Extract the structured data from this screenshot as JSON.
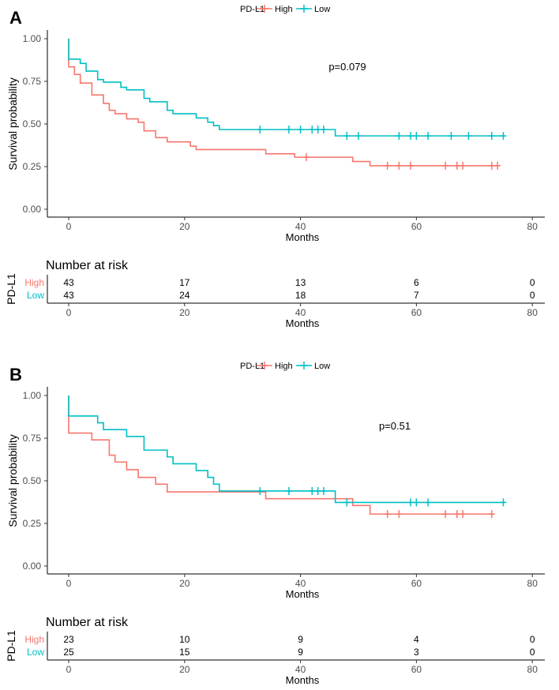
{
  "chart_data": [
    {
      "type": "line",
      "subtype": "kaplan-meier",
      "panel_label": "A",
      "legend": {
        "title": "PD-L1",
        "entries": [
          "High",
          "Low"
        ],
        "placement": "top"
      },
      "colors": {
        "High": "#F8766D",
        "Low": "#00BFC4"
      },
      "ylabel": "Survival probability",
      "xlabel": "Months",
      "xlim": [
        0,
        80
      ],
      "ylim": [
        0,
        1
      ],
      "xticks": [
        "0",
        "20",
        "40",
        "60",
        "80"
      ],
      "yticks": [
        "0.00",
        "0.25",
        "0.50",
        "0.75",
        "1.00"
      ],
      "pvalue": "p=0.079",
      "series": [
        {
          "name": "High",
          "steps": [
            [
              0,
              1.0
            ],
            [
              0,
              0.835
            ],
            [
              1,
              0.79
            ],
            [
              2,
              0.74
            ],
            [
              4,
              0.67
            ],
            [
              6,
              0.62
            ],
            [
              7,
              0.58
            ],
            [
              8,
              0.56
            ],
            [
              10,
              0.53
            ],
            [
              12,
              0.51
            ],
            [
              13,
              0.46
            ],
            [
              15,
              0.42
            ],
            [
              17,
              0.395
            ],
            [
              21,
              0.37
            ],
            [
              22,
              0.35
            ],
            [
              34,
              0.325
            ],
            [
              39,
              0.305
            ],
            [
              49,
              0.28
            ],
            [
              52,
              0.255
            ],
            [
              74,
              0.255
            ]
          ],
          "censored": [
            41,
            55,
            57,
            59,
            65,
            67,
            68,
            73,
            74
          ]
        },
        {
          "name": "Low",
          "steps": [
            [
              0,
              1.0
            ],
            [
              0,
              0.88
            ],
            [
              2,
              0.855
            ],
            [
              3,
              0.81
            ],
            [
              5,
              0.76
            ],
            [
              6,
              0.745
            ],
            [
              9,
              0.715
            ],
            [
              10,
              0.7
            ],
            [
              13,
              0.65
            ],
            [
              14,
              0.63
            ],
            [
              17,
              0.58
            ],
            [
              18,
              0.56
            ],
            [
              22,
              0.535
            ],
            [
              24,
              0.51
            ],
            [
              25,
              0.49
            ],
            [
              26,
              0.467
            ],
            [
              46,
              0.43
            ],
            [
              75,
              0.43
            ]
          ],
          "censored": [
            33,
            38,
            40,
            42,
            43,
            44,
            48,
            50,
            57,
            59,
            60,
            62,
            66,
            69,
            73,
            75
          ]
        }
      ],
      "risk_table": {
        "title": "Number at risk",
        "strata_label": "PD-L1",
        "times": [
          "0",
          "20",
          "40",
          "60",
          "80"
        ],
        "rows": [
          {
            "name": "High",
            "values": [
              "43",
              "17",
              "13",
              "6",
              "0"
            ]
          },
          {
            "name": "Low",
            "values": [
              "43",
              "24",
              "18",
              "7",
              "0"
            ]
          }
        ],
        "xlabel": "Months"
      }
    },
    {
      "type": "line",
      "subtype": "kaplan-meier",
      "panel_label": "B",
      "legend": {
        "title": "PD-L1",
        "entries": [
          "High",
          "Low"
        ],
        "placement": "top"
      },
      "colors": {
        "High": "#F8766D",
        "Low": "#00BFC4"
      },
      "ylabel": "Survival probability",
      "xlabel": "Months",
      "xlim": [
        0,
        80
      ],
      "ylim": [
        0,
        1
      ],
      "xticks": [
        "0",
        "20",
        "40",
        "60",
        "80"
      ],
      "yticks": [
        "0.00",
        "0.25",
        "0.50",
        "0.75",
        "1.00"
      ],
      "pvalue": "p=0.51",
      "series": [
        {
          "name": "High",
          "steps": [
            [
              0,
              1.0
            ],
            [
              0,
              0.78
            ],
            [
              4,
              0.74
            ],
            [
              7,
              0.65
            ],
            [
              8,
              0.61
            ],
            [
              10,
              0.565
            ],
            [
              12,
              0.52
            ],
            [
              15,
              0.48
            ],
            [
              17,
              0.435
            ],
            [
              34,
              0.395
            ],
            [
              49,
              0.355
            ],
            [
              52,
              0.305
            ],
            [
              73,
              0.305
            ]
          ],
          "censored": [
            55,
            57,
            65,
            67,
            68,
            73
          ]
        },
        {
          "name": "Low",
          "steps": [
            [
              0,
              1.0
            ],
            [
              0,
              0.88
            ],
            [
              5,
              0.84
            ],
            [
              6,
              0.8
            ],
            [
              10,
              0.76
            ],
            [
              13,
              0.68
            ],
            [
              17,
              0.64
            ],
            [
              18,
              0.6
            ],
            [
              22,
              0.56
            ],
            [
              24,
              0.52
            ],
            [
              25,
              0.48
            ],
            [
              26,
              0.44
            ],
            [
              46,
              0.373
            ],
            [
              75,
              0.373
            ]
          ],
          "censored": [
            33,
            38,
            42,
            43,
            44,
            48,
            59,
            60,
            62,
            75
          ]
        }
      ],
      "risk_table": {
        "title": "Number at risk",
        "strata_label": "PD-L1",
        "times": [
          "0",
          "20",
          "40",
          "60",
          "80"
        ],
        "rows": [
          {
            "name": "High",
            "values": [
              "23",
              "10",
              "9",
              "4",
              "0"
            ]
          },
          {
            "name": "Low",
            "values": [
              "25",
              "15",
              "9",
              "3",
              "0"
            ]
          }
        ],
        "xlabel": "Months"
      }
    }
  ]
}
